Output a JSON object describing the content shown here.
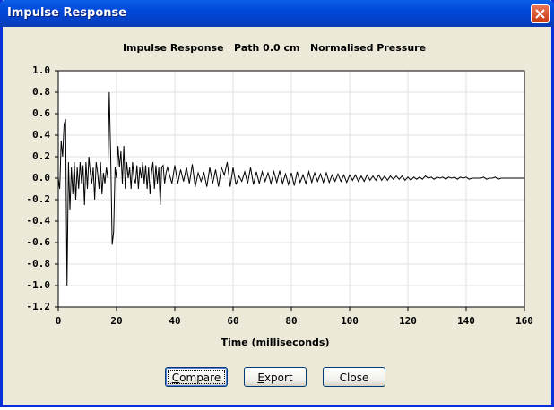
{
  "window": {
    "title": "Impulse Response"
  },
  "chart_data": {
    "type": "line",
    "title": "Impulse Response   Path 0.0 cm   Normalised Pressure",
    "x_label": "Time (milliseconds)",
    "color": "#000000",
    "grid": true,
    "xlim": [
      0,
      160
    ],
    "ylim": [
      -1.2,
      1.0
    ],
    "xticks": [
      0,
      20,
      40,
      60,
      80,
      100,
      120,
      140,
      160
    ],
    "yticks": [
      {
        "value": 1.0,
        "label": "1.0"
      },
      0.8,
      0.6,
      0.4,
      0.2,
      {
        "value": 0.0,
        "label": "0.0"
      },
      -0.2,
      -0.4,
      -0.6,
      -0.8,
      {
        "value": -1.0,
        "label": "-1.0"
      },
      -1.2
    ],
    "x": [
      0,
      0.5,
      1,
      1.5,
      2,
      2.5,
      3,
      3.5,
      4,
      4.5,
      5,
      5.5,
      6,
      6.5,
      7,
      7.5,
      8,
      8.5,
      9,
      9.5,
      10,
      10.5,
      11,
      11.5,
      12,
      12.5,
      13,
      13.5,
      14,
      14.5,
      15,
      15.5,
      16,
      16.5,
      17,
      17.5,
      18,
      18.5,
      19,
      19.5,
      20,
      20.5,
      21,
      21.5,
      22,
      22.5,
      23,
      23.5,
      24,
      24.5,
      25,
      25.5,
      26,
      26.5,
      27,
      27.5,
      28,
      28.5,
      29,
      29.5,
      30,
      30.5,
      31,
      31.5,
      32,
      32.5,
      33,
      33.5,
      34,
      34.5,
      35,
      35.5,
      36,
      36.5,
      37,
      37.5,
      38,
      39,
      40,
      41,
      42,
      43,
      44,
      45,
      46,
      47,
      48,
      49,
      50,
      51,
      52,
      53,
      54,
      55,
      56,
      57,
      58,
      59,
      60,
      61,
      62,
      63,
      64,
      65,
      66,
      67,
      68,
      69,
      70,
      71,
      72,
      73,
      74,
      75,
      76,
      77,
      78,
      79,
      80,
      81,
      82,
      83,
      84,
      85,
      86,
      87,
      88,
      89,
      90,
      91,
      92,
      93,
      94,
      95,
      96,
      97,
      98,
      99,
      100,
      101,
      102,
      103,
      104,
      105,
      106,
      107,
      108,
      109,
      110,
      111,
      112,
      113,
      114,
      115,
      116,
      117,
      118,
      119,
      120,
      121,
      122,
      123,
      124,
      125,
      126,
      127,
      128,
      129,
      130,
      131,
      132,
      133,
      134,
      135,
      136,
      137,
      138,
      139,
      140,
      141,
      142,
      143,
      144,
      145,
      146,
      147,
      148,
      149,
      150,
      151,
      152,
      153,
      154,
      155,
      156,
      157,
      158,
      159,
      160
    ],
    "values": [
      0,
      -0.1,
      0.35,
      0.2,
      0.5,
      0.55,
      -1.0,
      0.15,
      -0.3,
      0.1,
      -0.15,
      0.15,
      -0.2,
      0.1,
      -0.1,
      0.15,
      -0.05,
      0.12,
      -0.25,
      0.15,
      -0.1,
      0.2,
      0.05,
      -0.05,
      0.1,
      -0.2,
      0.15,
      0.05,
      -0.1,
      0.15,
      -0.15,
      0.05,
      -0.05,
      0.1,
      0.0,
      0.8,
      0.2,
      -0.62,
      -0.5,
      0.1,
      0.0,
      0.3,
      0.1,
      0.25,
      -0.05,
      0.3,
      -0.1,
      0.15,
      0.0,
      0.1,
      -0.1,
      0.15,
      0.0,
      -0.05,
      0.12,
      -0.1,
      0.1,
      0.0,
      0.15,
      -0.05,
      0.12,
      -0.1,
      0.1,
      -0.15,
      0.05,
      0.15,
      -0.1,
      0.12,
      -0.05,
      0.1,
      -0.25,
      0.1,
      0.12,
      -0.05,
      0.05,
      0.1,
      0.05,
      -0.05,
      0.12,
      -0.05,
      0.08,
      -0.03,
      0.1,
      -0.05,
      0.13,
      -0.08,
      0.05,
      -0.03,
      0.05,
      -0.08,
      0.1,
      -0.05,
      0.08,
      -0.08,
      0.1,
      0.03,
      0.15,
      -0.08,
      0.1,
      -0.06,
      0.02,
      -0.03,
      0.06,
      -0.05,
      0.1,
      -0.06,
      0.06,
      -0.05,
      0.06,
      -0.03,
      0.05,
      -0.05,
      0.06,
      -0.04,
      0.07,
      -0.05,
      0.04,
      -0.06,
      0.05,
      -0.07,
      0.06,
      -0.04,
      0.03,
      -0.05,
      0.06,
      -0.04,
      0.05,
      -0.03,
      0.04,
      -0.04,
      0.05,
      -0.04,
      0.03,
      -0.03,
      0.04,
      -0.03,
      0.03,
      -0.04,
      0.03,
      -0.02,
      0.03,
      -0.03,
      0.02,
      -0.03,
      0.03,
      -0.02,
      0.02,
      -0.02,
      0.03,
      -0.02,
      0.02,
      -0.02,
      0.02,
      -0.01,
      0.02,
      -0.01,
      0.02,
      -0.02,
      0.01,
      -0.02,
      0.01,
      -0.01,
      0.01,
      -0.01,
      0.02,
      0,
      0.01,
      -0.01,
      0.01,
      0,
      0.01,
      -0.01,
      0.01,
      0,
      0.01,
      -0.01,
      0.01,
      0,
      0.01,
      -0.01,
      0,
      0,
      0,
      0,
      0.01,
      -0.01,
      0,
      0,
      0.01,
      -0.01,
      0,
      0,
      0,
      0,
      0,
      0,
      0,
      0,
      0
    ]
  },
  "buttons": [
    "Compare",
    "Export",
    "Close"
  ]
}
